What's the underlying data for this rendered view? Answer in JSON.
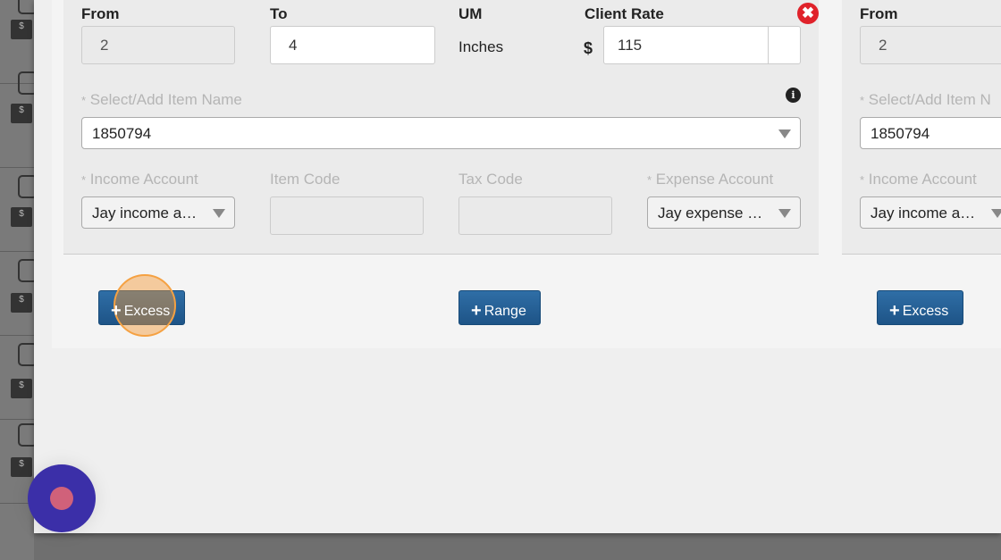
{
  "range_card": {
    "from_label": "From",
    "from_value": "2",
    "to_label": "To",
    "to_value": "4",
    "um_label": "UM",
    "um_value": "Inches",
    "client_rate_label": "Client Rate",
    "currency_symbol": "$",
    "client_rate_value": "115",
    "item_name_label": "Select/Add Item Name",
    "item_name_value": "1850794",
    "income_account_label": "Income Account",
    "income_account_value": "Jay income a…",
    "item_code_label": "Item Code",
    "tax_code_label": "Tax Code",
    "expense_account_label": "Expense Account",
    "expense_account_value": "Jay expense …",
    "required_mark": "*"
  },
  "second_card": {
    "from_label": "From",
    "from_value": "2",
    "item_name_label": "Select/Add Item N",
    "item_name_value": "1850794",
    "income_account_label": "Income Account",
    "income_account_value": "Jay income a…",
    "required_mark": "*"
  },
  "buttons": {
    "excess": "Excess",
    "range": "Range",
    "excess2": "Excess",
    "plus": "+"
  },
  "colors": {
    "button": "#22598c",
    "remove": "#e0222a",
    "highlight": "#f5a142",
    "recorder": "#3b2fa8"
  }
}
